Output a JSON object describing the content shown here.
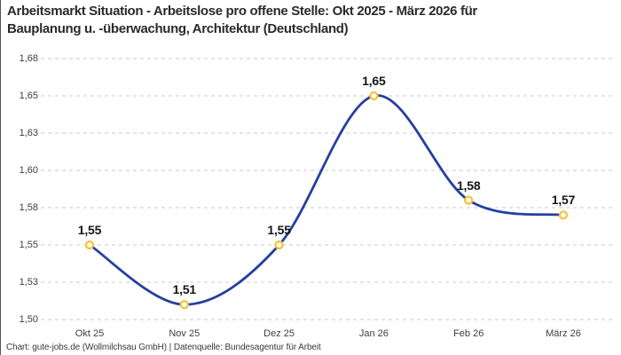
{
  "header": {
    "title": "Arbeitsmarkt Situation - Arbeitslose pro offene Stelle: Okt 2025 - März 2026 für\nBauplanung u. -überwachung, Architektur (Deutschland)"
  },
  "footer": {
    "credit": "Chart: gute-jobs.de (Wollmilchsau GmbH) | Datenquelle: Bundesagentur für Arbeit"
  },
  "chart_data": {
    "type": "line",
    "title": "Arbeitsmarkt Situation - Arbeitslose pro offene Stelle: Okt 2025 - März 2026 für Bauplanung u. -überwachung, Architektur (Deutschland)",
    "xlabel": "",
    "ylabel": "",
    "categories": [
      "Okt 25",
      "Nov 25",
      "Dez 25",
      "Jan 26",
      "Feb 26",
      "März 26"
    ],
    "values": [
      1.55,
      1.51,
      1.55,
      1.65,
      1.58,
      1.57
    ],
    "point_labels": [
      "1,55",
      "1,51",
      "1,55",
      "1,65",
      "1,58",
      "1,57"
    ],
    "ylim": [
      1.5,
      1.675
    ],
    "yticks": [
      {
        "value": 1.675,
        "label": "1,68"
      },
      {
        "value": 1.65,
        "label": "1,65"
      },
      {
        "value": 1.625,
        "label": "1,63"
      },
      {
        "value": 1.6,
        "label": "1,60"
      },
      {
        "value": 1.575,
        "label": "1,58"
      },
      {
        "value": 1.55,
        "label": "1,55"
      },
      {
        "value": 1.525,
        "label": "1,53"
      },
      {
        "value": 1.5,
        "label": "1,50"
      }
    ],
    "grid": "horizontal-dashed",
    "legend_position": "none",
    "line_style": "smooth-spline",
    "colors": {
      "line": "#25409e",
      "marker_ring": "#f5c33c",
      "marker_fill": "#ffffff",
      "grid": "#cbcbcb",
      "point_label": "#161616",
      "axis_text": "#3d3d3d",
      "title_text": "#2b2b2b"
    }
  }
}
